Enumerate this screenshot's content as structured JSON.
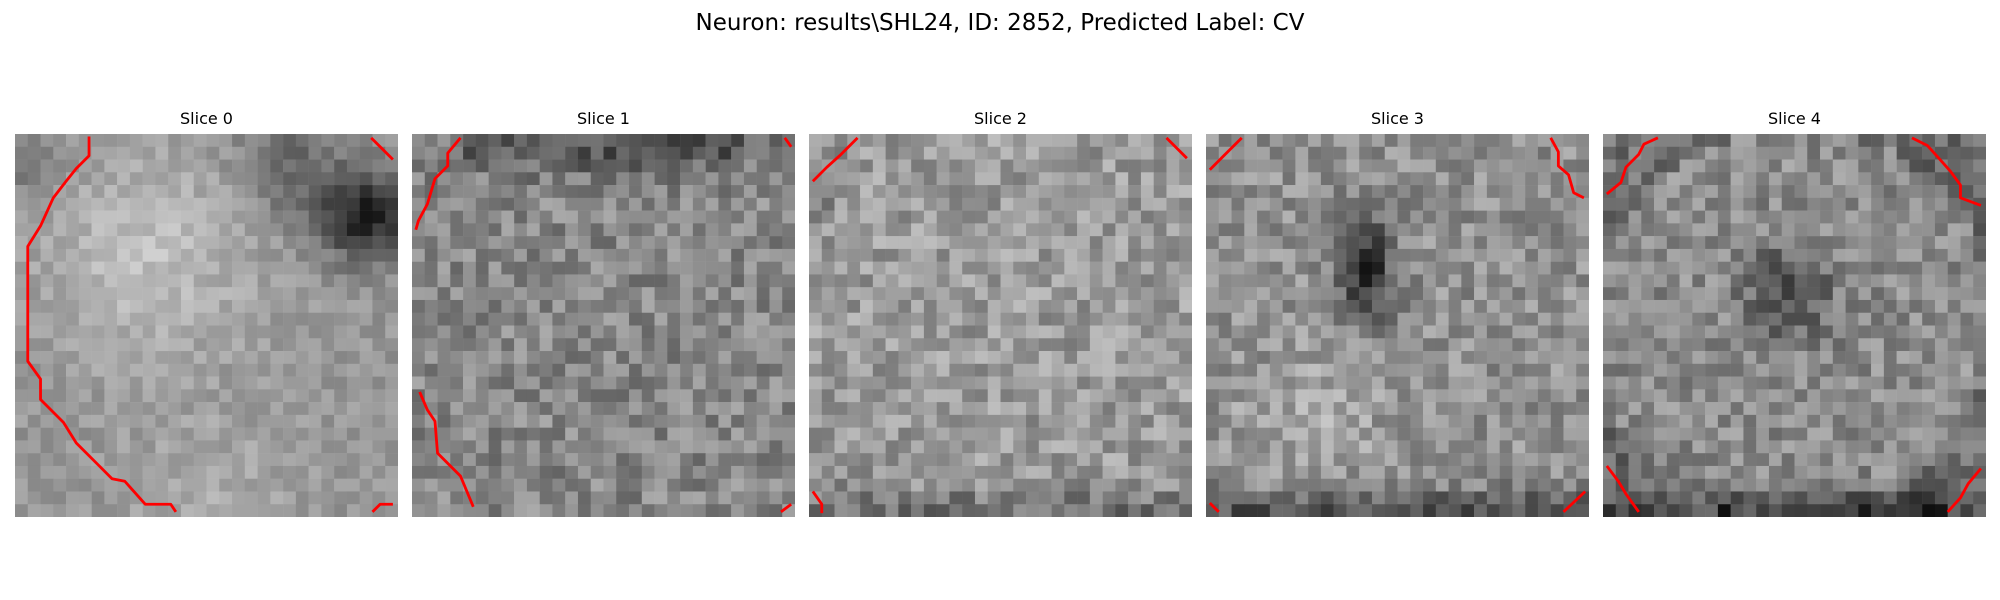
{
  "figure": {
    "title": "Neuron: results\\SHL24, ID: 2852, Predicted Label: CV"
  },
  "panels": [
    {
      "title": "Slice 0"
    },
    {
      "title": "Slice 1"
    },
    {
      "title": "Slice 2"
    },
    {
      "title": "Slice 3"
    },
    {
      "title": "Slice 4"
    }
  ],
  "colors": {
    "contour": "#ff0000",
    "colormap": "gray"
  }
}
